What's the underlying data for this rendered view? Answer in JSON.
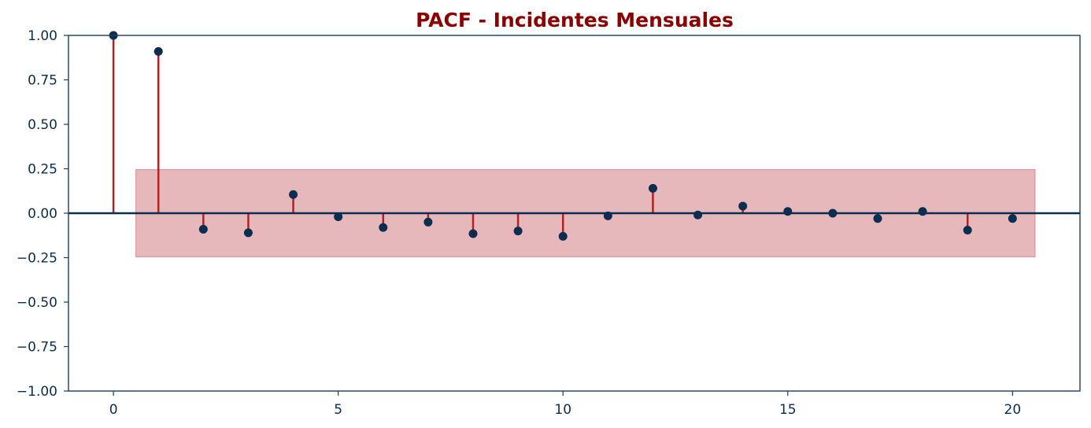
{
  "chart_data": {
    "type": "stem",
    "title": "PACF - Incidentes Mensuales",
    "xlabel": "",
    "ylabel": "",
    "xlim": [
      -1,
      21.5
    ],
    "ylim": [
      -1.0,
      1.0
    ],
    "x_ticks": [
      0,
      5,
      10,
      15,
      20
    ],
    "y_ticks": [
      1.0,
      0.75,
      0.5,
      0.25,
      0.0,
      -0.25,
      -0.5,
      -0.75,
      -1.0
    ],
    "x_tick_labels": [
      "0",
      "5",
      "10",
      "15",
      "20"
    ],
    "y_tick_labels": [
      "1.00",
      "0.75",
      "0.50",
      "0.25",
      "0.00",
      "−0.25",
      "−0.50",
      "−0.75",
      "−1.00"
    ],
    "lags": [
      0,
      1,
      2,
      3,
      4,
      5,
      6,
      7,
      8,
      9,
      10,
      11,
      12,
      13,
      14,
      15,
      16,
      17,
      18,
      19,
      20
    ],
    "values": [
      1.0,
      0.91,
      -0.09,
      -0.11,
      0.105,
      -0.02,
      -0.08,
      -0.05,
      -0.115,
      -0.1,
      -0.13,
      -0.015,
      0.14,
      -0.01,
      0.04,
      0.01,
      0.0,
      -0.03,
      0.01,
      -0.095,
      -0.03
    ],
    "confidence_band": {
      "from_lag": 0.5,
      "to_lag": 20.5,
      "upper": 0.245,
      "lower": -0.245
    },
    "grid": false,
    "colors": {
      "title": "#8b0000",
      "stem": "#b22222",
      "marker": "#0b2d4f",
      "zero_line": "#0b2d4f",
      "axes": "#1d3f5e",
      "tick_text": "#0b2d4f",
      "band_fill": "#e6b8bb",
      "band_edge": "#d98a8e"
    }
  }
}
